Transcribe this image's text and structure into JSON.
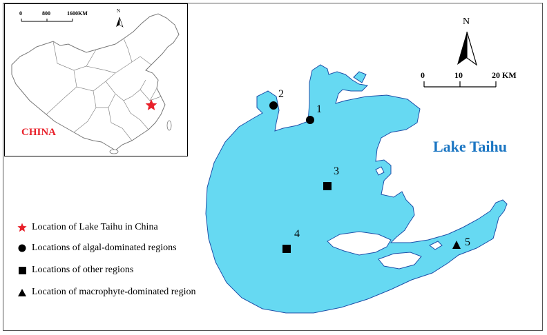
{
  "inset": {
    "country_label": "CHINA",
    "north_label": "N",
    "scale_ticks": [
      "0",
      "800",
      "1600KM"
    ],
    "star_color": "#e8202a"
  },
  "lake": {
    "title": "Lake Taihu",
    "title_color": "#1a75c2",
    "fill_color": "#66d9f2",
    "outline_color": "#1d4fa8"
  },
  "north_arrow": {
    "label": "N"
  },
  "scale_bar": {
    "ticks": [
      "0",
      "10",
      "20 KM"
    ]
  },
  "sites": [
    {
      "id": "1",
      "symbol": "circle"
    },
    {
      "id": "2",
      "symbol": "circle"
    },
    {
      "id": "3",
      "symbol": "square"
    },
    {
      "id": "4",
      "symbol": "square"
    },
    {
      "id": "5",
      "symbol": "triangle"
    }
  ],
  "legend": [
    {
      "symbol": "star",
      "text": "Location of Lake Taihu in China"
    },
    {
      "symbol": "circle",
      "text": "Locations of algal-dominated regions"
    },
    {
      "symbol": "square",
      "text": "Locations of other regions"
    },
    {
      "symbol": "triangle",
      "text": "Location of macrophyte-dominated region"
    }
  ]
}
